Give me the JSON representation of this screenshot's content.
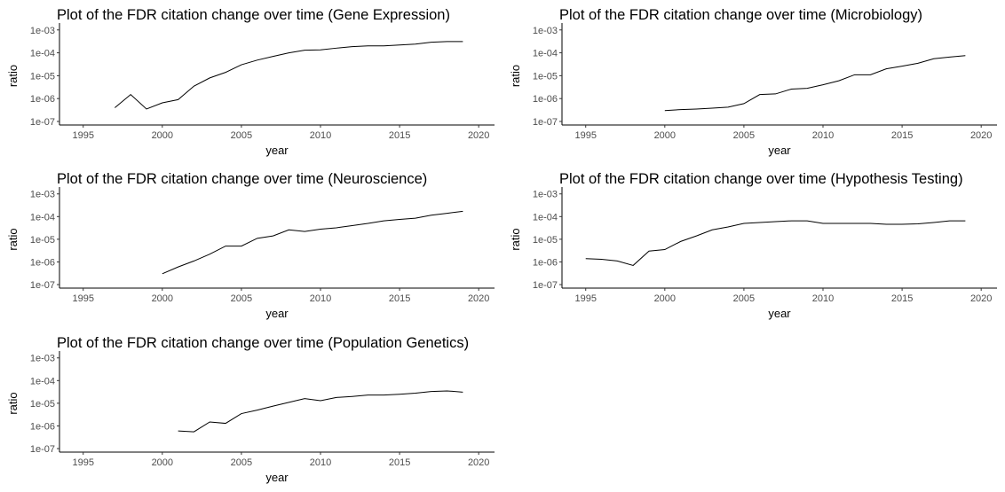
{
  "chart_data": [
    {
      "type": "line",
      "title": "Plot of the FDR citation change over time (Gene Expression)",
      "xlabel": "year",
      "ylabel": "ratio",
      "xlim": [
        1993.5,
        2021
      ],
      "ylim": [
        7e-08,
        0.0014
      ],
      "y_scale": "log10",
      "x_ticks": [
        1995,
        2000,
        2005,
        2010,
        2015,
        2020
      ],
      "x_tick_labels": [
        "1995",
        "2000",
        "2005",
        "2010",
        "2015",
        "2020"
      ],
      "y_ticks": [
        1e-07,
        1e-06,
        1e-05,
        0.0001,
        0.001
      ],
      "y_tick_labels": [
        "1e-07",
        "1e-06",
        "1e-05",
        "1e-04",
        "1e-03"
      ],
      "grid": false,
      "series": [
        {
          "x": [
            1997,
            1998,
            1999,
            2000,
            2001,
            2002,
            2003,
            2004,
            2005,
            2006,
            2007,
            2008,
            2009,
            2010,
            2011,
            2012,
            2013,
            2014,
            2015,
            2016,
            2017,
            2018,
            2019
          ],
          "values": [
            4e-07,
            1.5e-06,
            3.5e-07,
            6.5e-07,
            9e-07,
            3.5e-06,
            8e-06,
            1.4e-05,
            3e-05,
            4.8e-05,
            7e-05,
            0.0001,
            0.00013,
            0.000135,
            0.00016,
            0.000185,
            0.0002,
            0.0002,
            0.00022,
            0.00024,
            0.00029,
            0.00031,
            0.00031
          ]
        }
      ]
    },
    {
      "type": "line",
      "title": "Plot of the FDR citation change over time (Microbiology)",
      "xlabel": "year",
      "ylabel": "ratio",
      "xlim": [
        1993.5,
        2021
      ],
      "ylim": [
        7e-08,
        0.0014
      ],
      "y_scale": "log10",
      "x_ticks": [
        1995,
        2000,
        2005,
        2010,
        2015,
        2020
      ],
      "x_tick_labels": [
        "1995",
        "2000",
        "2005",
        "2010",
        "2015",
        "2020"
      ],
      "y_ticks": [
        1e-07,
        1e-06,
        1e-05,
        0.0001,
        0.001
      ],
      "y_tick_labels": [
        "1e-07",
        "1e-06",
        "1e-05",
        "1e-04",
        "1e-03"
      ],
      "grid": false,
      "series": [
        {
          "x": [
            2000,
            2001,
            2002,
            2003,
            2004,
            2005,
            2006,
            2007,
            2008,
            2009,
            2010,
            2011,
            2012,
            2013,
            2014,
            2015,
            2016,
            2017,
            2018,
            2019
          ],
          "values": [
            3e-07,
            3.3e-07,
            3.5e-07,
            3.8e-07,
            4.2e-07,
            6e-07,
            1.5e-06,
            1.6e-06,
            2.6e-06,
            2.8e-06,
            4e-06,
            6e-06,
            1.1e-05,
            1.1e-05,
            2e-05,
            2.6e-05,
            3.5e-05,
            5.5e-05,
            6.5e-05,
            7.5e-05
          ]
        }
      ]
    },
    {
      "type": "line",
      "title": "Plot of the FDR citation change over time (Neuroscience)",
      "xlabel": "year",
      "ylabel": "ratio",
      "xlim": [
        1993.5,
        2021
      ],
      "ylim": [
        7e-08,
        0.0014
      ],
      "y_scale": "log10",
      "x_ticks": [
        1995,
        2000,
        2005,
        2010,
        2015,
        2020
      ],
      "x_tick_labels": [
        "1995",
        "2000",
        "2005",
        "2010",
        "2015",
        "2020"
      ],
      "y_ticks": [
        1e-07,
        1e-06,
        1e-05,
        0.0001,
        0.001
      ],
      "y_tick_labels": [
        "1e-07",
        "1e-06",
        "1e-05",
        "1e-04",
        "1e-03"
      ],
      "grid": false,
      "series": [
        {
          "x": [
            2000,
            2001,
            2002,
            2003,
            2004,
            2005,
            2006,
            2007,
            2008,
            2009,
            2010,
            2011,
            2012,
            2013,
            2014,
            2015,
            2016,
            2017,
            2018,
            2019
          ],
          "values": [
            3e-07,
            6e-07,
            1.1e-06,
            2.2e-06,
            5e-06,
            5e-06,
            1.1e-05,
            1.4e-05,
            2.6e-05,
            2.2e-05,
            2.8e-05,
            3.2e-05,
            4e-05,
            5e-05,
            6.5e-05,
            7.5e-05,
            8.5e-05,
            0.000115,
            0.00014,
            0.00017
          ]
        }
      ]
    },
    {
      "type": "line",
      "title": "Plot of the FDR citation change over time (Hypothesis Testing)",
      "xlabel": "year",
      "ylabel": "ratio",
      "xlim": [
        1993.5,
        2021
      ],
      "ylim": [
        7e-08,
        0.0014
      ],
      "y_scale": "log10",
      "x_ticks": [
        1995,
        2000,
        2005,
        2010,
        2015,
        2020
      ],
      "x_tick_labels": [
        "1995",
        "2000",
        "2005",
        "2010",
        "2015",
        "2020"
      ],
      "y_ticks": [
        1e-07,
        1e-06,
        1e-05,
        0.0001,
        0.001
      ],
      "y_tick_labels": [
        "1e-07",
        "1e-06",
        "1e-05",
        "1e-04",
        "1e-03"
      ],
      "grid": false,
      "series": [
        {
          "x": [
            1995,
            1996,
            1997,
            1998,
            1999,
            2000,
            2001,
            2002,
            2003,
            2004,
            2005,
            2006,
            2007,
            2008,
            2009,
            2010,
            2011,
            2012,
            2013,
            2014,
            2015,
            2016,
            2017,
            2018,
            2019
          ],
          "values": [
            1.4e-06,
            1.3e-06,
            1.1e-06,
            7e-07,
            3e-06,
            3.5e-06,
            8e-06,
            1.4e-05,
            2.6e-05,
            3.5e-05,
            5e-05,
            5.5e-05,
            6e-05,
            6.5e-05,
            6.5e-05,
            5e-05,
            5e-05,
            5e-05,
            5e-05,
            4.6e-05,
            4.6e-05,
            4.8e-05,
            5.5e-05,
            6.5e-05,
            6.5e-05
          ]
        }
      ]
    },
    {
      "type": "line",
      "title": "Plot of the FDR citation change over time (Population Genetics)",
      "xlabel": "year",
      "ylabel": "ratio",
      "xlim": [
        1993.5,
        2021
      ],
      "ylim": [
        7e-08,
        0.0014
      ],
      "y_scale": "log10",
      "x_ticks": [
        1995,
        2000,
        2005,
        2010,
        2015,
        2020
      ],
      "x_tick_labels": [
        "1995",
        "2000",
        "2005",
        "2010",
        "2015",
        "2020"
      ],
      "y_ticks": [
        1e-07,
        1e-06,
        1e-05,
        0.0001,
        0.001
      ],
      "y_tick_labels": [
        "1e-07",
        "1e-06",
        "1e-05",
        "1e-04",
        "1e-03"
      ],
      "grid": false,
      "series": [
        {
          "x": [
            2001,
            2002,
            2003,
            2004,
            2005,
            2006,
            2007,
            2008,
            2009,
            2010,
            2011,
            2012,
            2013,
            2014,
            2015,
            2016,
            2017,
            2018,
            2019
          ],
          "values": [
            6e-07,
            5.5e-07,
            1.5e-06,
            1.3e-06,
            3.5e-06,
            5e-06,
            7.5e-06,
            1.1e-05,
            1.6e-05,
            1.3e-05,
            1.8e-05,
            2e-05,
            2.3e-05,
            2.3e-05,
            2.5e-05,
            2.8e-05,
            3.3e-05,
            3.5e-05,
            3.1e-05
          ]
        }
      ]
    }
  ]
}
